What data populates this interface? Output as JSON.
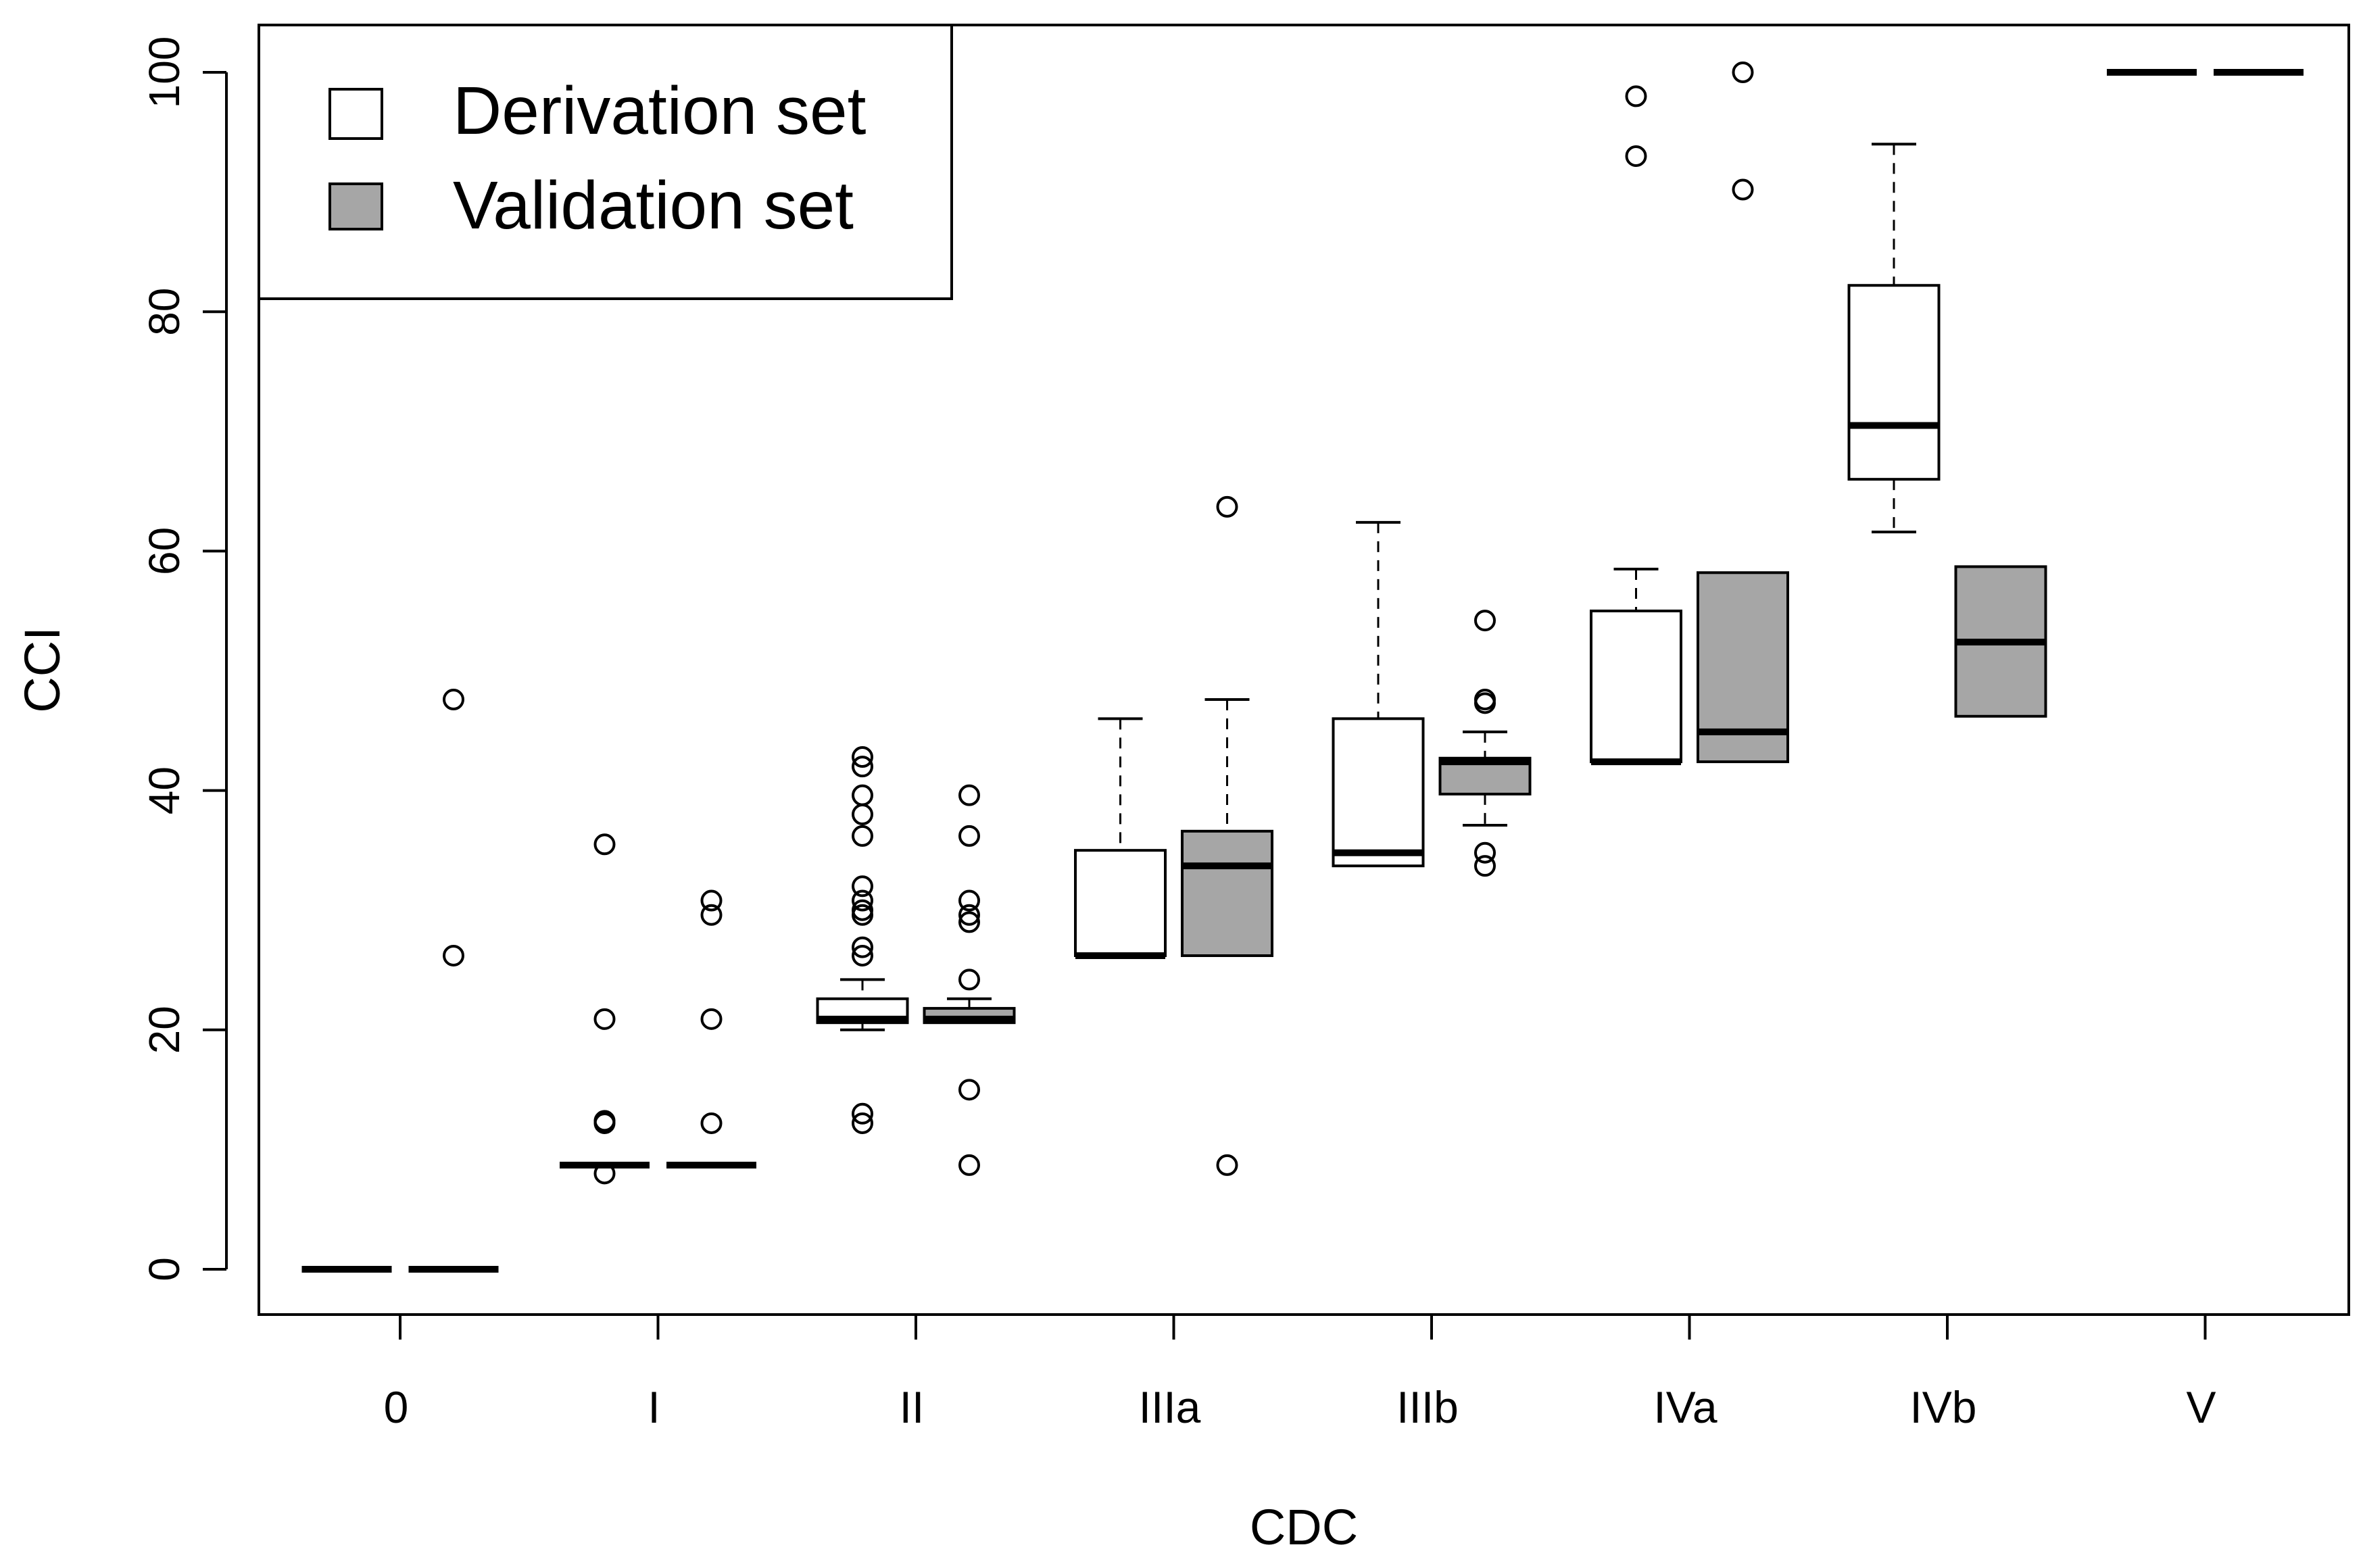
{
  "chart_data": {
    "type": "boxplot",
    "title": "",
    "xlabel": "CDC",
    "ylabel": "CCI",
    "ylim": [
      -4,
      104
    ],
    "yticks": [
      0,
      20,
      40,
      60,
      80,
      100
    ],
    "categories": [
      "0",
      "I",
      "II",
      "IIIa",
      "IIIb",
      "IVa",
      "IVb",
      "V"
    ],
    "legend": {
      "position": "top-left",
      "entries": [
        {
          "label": "Derivation set",
          "color": "#ffffff"
        },
        {
          "label": "Validation set",
          "color": "#a6a6a6"
        }
      ]
    },
    "series": [
      {
        "name": "Derivation set",
        "color": "#ffffff",
        "boxes": [
          {
            "category": "0",
            "q1": 0,
            "median": 0,
            "q3": 0,
            "whisker_low": 0,
            "whisker_high": 0,
            "outliers": []
          },
          {
            "category": "I",
            "q1": 8.7,
            "median": 8.7,
            "q3": 8.7,
            "whisker_low": 8.7,
            "whisker_high": 8.7,
            "outliers": [
              8.0,
              12.2,
              12.4,
              20.9,
              35.5
            ]
          },
          {
            "category": "II",
            "q1": 20.6,
            "median": 20.9,
            "q3": 22.6,
            "whisker_low": 20.0,
            "whisker_high": 24.2,
            "outliers": [
              12.2,
              13.0,
              26.2,
              26.9,
              29.6,
              30.0,
              30.8,
              32.0,
              36.2,
              38.0,
              39.6,
              42.0,
              42.8
            ]
          },
          {
            "category": "IIIa",
            "q1": 26.2,
            "median": 26.2,
            "q3": 35.0,
            "whisker_low": 26.2,
            "whisker_high": 46.0,
            "outliers": []
          },
          {
            "category": "IIIb",
            "q1": 33.7,
            "median": 34.8,
            "q3": 46.0,
            "whisker_low": 33.7,
            "whisker_high": 62.4,
            "outliers": []
          },
          {
            "category": "IVa",
            "q1": 42.4,
            "median": 42.4,
            "q3": 55.0,
            "whisker_low": 42.4,
            "whisker_high": 58.5,
            "outliers": [
              93.0,
              98.0
            ]
          },
          {
            "category": "IVb",
            "q1": 66.0,
            "median": 70.5,
            "q3": 82.2,
            "whisker_low": 61.6,
            "whisker_high": 94.0,
            "outliers": []
          },
          {
            "category": "V",
            "q1": 100,
            "median": 100,
            "q3": 100,
            "whisker_low": 100,
            "whisker_high": 100,
            "outliers": []
          }
        ]
      },
      {
        "name": "Validation set",
        "color": "#a6a6a6",
        "boxes": [
          {
            "category": "0",
            "q1": 0,
            "median": 0,
            "q3": 0,
            "whisker_low": 0,
            "whisker_high": 0,
            "outliers": [
              26.2,
              47.6
            ]
          },
          {
            "category": "I",
            "q1": 8.7,
            "median": 8.7,
            "q3": 8.7,
            "whisker_low": 8.7,
            "whisker_high": 8.7,
            "outliers": [
              12.2,
              20.9,
              29.6,
              30.8
            ]
          },
          {
            "category": "II",
            "q1": 20.6,
            "median": 20.9,
            "q3": 21.8,
            "whisker_low": 20.6,
            "whisker_high": 22.6,
            "outliers": [
              8.7,
              15.0,
              24.2,
              29.0,
              29.6,
              30.8,
              36.2,
              39.6
            ]
          },
          {
            "category": "IIIa",
            "q1": 26.2,
            "median": 33.7,
            "q3": 36.6,
            "whisker_low": 26.2,
            "whisker_high": 47.6,
            "outliers": [
              8.7,
              63.7
            ]
          },
          {
            "category": "IIIb",
            "q1": 39.7,
            "median": 42.4,
            "q3": 42.7,
            "whisker_low": 37.1,
            "whisker_high": 44.9,
            "outliers": [
              33.7,
              34.8,
              47.3,
              47.6,
              54.2
            ]
          },
          {
            "category": "IVa",
            "q1": 42.4,
            "median": 44.9,
            "q3": 58.2,
            "whisker_low": 42.4,
            "whisker_high": 58.2,
            "outliers": [
              90.2,
              100.0
            ]
          },
          {
            "category": "IVb",
            "q1": 46.2,
            "median": 52.4,
            "q3": 58.7,
            "whisker_low": 46.2,
            "whisker_high": 58.7,
            "outliers": []
          },
          {
            "category": "V",
            "q1": 100,
            "median": 100,
            "q3": 100,
            "whisker_low": 100,
            "whisker_high": 100,
            "outliers": []
          }
        ]
      }
    ]
  }
}
